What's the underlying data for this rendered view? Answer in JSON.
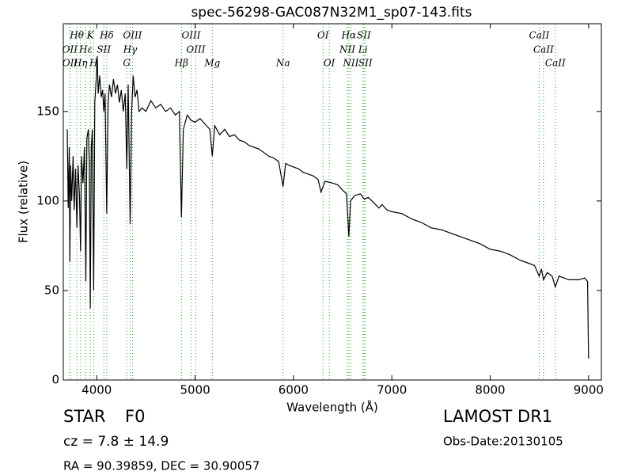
{
  "chart_data": {
    "type": "line",
    "title": "spec-56298-GAC087N32M1_sp07-143.fits",
    "x_label": "Wavelength (Å)",
    "y_label": "Flux (relative)",
    "xlim": [
      3660,
      9130
    ],
    "ylim": [
      0,
      199
    ],
    "xticks": [
      4000,
      5000,
      6000,
      7000,
      8000,
      9000
    ],
    "yticks": [
      0,
      50,
      100,
      150
    ],
    "color": "#000000",
    "line_color": "#2ca02c",
    "x": [
      3700,
      3710,
      3720,
      3727,
      3735,
      3745,
      3760,
      3770,
      3785,
      3798,
      3810,
      3825,
      3835,
      3845,
      3860,
      3875,
      3889,
      3900,
      3915,
      3925,
      3934,
      3945,
      3955,
      3969,
      3980,
      3995,
      4005,
      4015,
      4030,
      4045,
      4060,
      4072,
      4085,
      4102,
      4115,
      4130,
      4150,
      4170,
      4190,
      4210,
      4230,
      4250,
      4270,
      4290,
      4305,
      4320,
      4340,
      4355,
      4370,
      4390,
      4410,
      4430,
      4460,
      4500,
      4550,
      4600,
      4650,
      4700,
      4750,
      4800,
      4840,
      4861,
      4880,
      4920,
      4960,
      5000,
      5050,
      5100,
      5150,
      5175,
      5200,
      5250,
      5300,
      5350,
      5400,
      5450,
      5500,
      5550,
      5600,
      5650,
      5700,
      5750,
      5800,
      5850,
      5894,
      5920,
      5950,
      6000,
      6050,
      6100,
      6150,
      6200,
      6250,
      6280,
      6320,
      6400,
      6450,
      6500,
      6540,
      6563,
      6580,
      6620,
      6680,
      6720,
      6760,
      6800,
      6870,
      6900,
      6950,
      7000,
      7100,
      7200,
      7300,
      7400,
      7500,
      7600,
      7700,
      7800,
      7900,
      8000,
      8100,
      8200,
      8300,
      8400,
      8450,
      8498,
      8520,
      8542,
      8580,
      8630,
      8662,
      8700,
      8800,
      8900,
      8960,
      8990,
      9000
    ],
    "values": [
      140,
      96,
      130,
      66,
      120,
      100,
      125,
      95,
      118,
      85,
      120,
      102,
      72,
      125,
      110,
      130,
      55,
      135,
      140,
      120,
      40,
      130,
      140,
      50,
      155,
      168,
      181,
      160,
      170,
      158,
      162,
      150,
      160,
      93,
      155,
      165,
      158,
      168,
      160,
      165,
      155,
      162,
      150,
      160,
      118,
      165,
      87,
      150,
      170,
      158,
      162,
      150,
      152,
      150,
      156,
      152,
      154,
      150,
      152,
      148,
      150,
      91,
      140,
      148,
      145,
      144,
      146,
      143,
      140,
      125,
      142,
      137,
      140,
      136,
      137,
      134,
      133,
      131,
      130,
      129,
      127,
      125,
      124,
      122,
      108,
      121,
      120,
      119,
      118,
      116,
      115,
      114,
      112,
      105,
      111,
      110,
      109,
      106,
      104,
      80,
      100,
      103,
      104,
      101,
      102,
      100,
      96,
      98,
      95,
      94,
      93,
      90,
      88,
      85,
      84,
      82,
      80,
      78,
      76,
      73,
      72,
      70,
      67,
      65,
      64,
      58,
      62,
      56,
      60,
      58,
      52,
      58,
      56,
      56,
      57,
      55,
      12
    ],
    "spectral_lines": [
      {
        "label": "OII",
        "wavelength": 3727
      },
      {
        "label": "OII",
        "wavelength": 3729
      },
      {
        "label": "Hθ",
        "wavelength": 3798
      },
      {
        "label": "Hη",
        "wavelength": 3835
      },
      {
        "label": "Hε",
        "wavelength": 3889
      },
      {
        "label": "K",
        "wavelength": 3934
      },
      {
        "label": "H",
        "wavelength": 3969
      },
      {
        "label": "SII",
        "wavelength": 4072
      },
      {
        "label": "Hδ",
        "wavelength": 4102
      },
      {
        "label": "G",
        "wavelength": 4305
      },
      {
        "label": "Hγ",
        "wavelength": 4340
      },
      {
        "label": "OIII",
        "wavelength": 4363
      },
      {
        "label": "Hβ",
        "wavelength": 4861
      },
      {
        "label": "OIII",
        "wavelength": 4959
      },
      {
        "label": "OIII",
        "wavelength": 5007
      },
      {
        "label": "Mg",
        "wavelength": 5175
      },
      {
        "label": "Na",
        "wavelength": 5894
      },
      {
        "label": "OI",
        "wavelength": 6300
      },
      {
        "label": "OI",
        "wavelength": 6364
      },
      {
        "label": "NII",
        "wavelength": 6548
      },
      {
        "label": "Hα",
        "wavelength": 6563
      },
      {
        "label": "NII",
        "wavelength": 6583
      },
      {
        "label": "Li",
        "wavelength": 6707
      },
      {
        "label": "SII",
        "wavelength": 6716
      },
      {
        "label": "SII",
        "wavelength": 6731
      },
      {
        "label": "CaII",
        "wavelength": 8498
      },
      {
        "label": "CaII",
        "wavelength": 8542
      },
      {
        "label": "CaII",
        "wavelength": 8662
      }
    ],
    "info": {
      "class": "STAR",
      "subclass": "F0",
      "redshift": "cz = 7.8 ± 14.9",
      "position": "RA = 90.39859, DEC = 30.90057",
      "release": "LAMOST DR1",
      "obs_date": "Obs-Date:20130105"
    }
  }
}
